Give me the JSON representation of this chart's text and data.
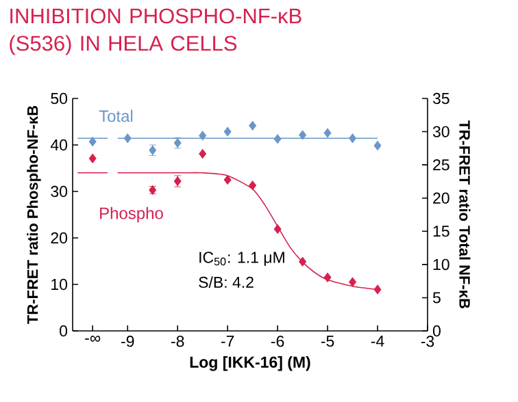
{
  "chart_data": {
    "type": "scatter",
    "title": "INHIBITION PHOSPHO-NF-κB (S536) IN HELA CELLS",
    "xlabel": "Log [IKK-16] (M)",
    "ylabel": "TR-FRET ratio Phospho-NF-κB",
    "y2label": "TR-FRET ratio Total NF-κB",
    "annotations": [
      "IC$_{50}$: 1.1 μM",
      "S/B: 4.2"
    ],
    "xlim": [
      -10.1,
      -3
    ],
    "xticks": [
      {
        "value": -9.7,
        "label": "-∞"
      },
      -9,
      -8,
      -7,
      -6,
      -5,
      -4,
      -3
    ],
    "ylim": [
      0,
      50
    ],
    "yticks": [
      0,
      10,
      20,
      30,
      40,
      50
    ],
    "y2lim": [
      0,
      35
    ],
    "y2ticks": [
      0,
      5,
      10,
      15,
      20,
      25,
      30,
      35
    ],
    "grid": false,
    "marker": "diamond",
    "series": [
      {
        "name": "Phospho",
        "color": "#d6204e",
        "x": [
          -9.7,
          -8.5,
          -8,
          -7.5,
          -7,
          -6.5,
          -6,
          -5.5,
          -5,
          -4.5,
          -4
        ],
        "values": [
          37.1,
          30.3,
          32.2,
          38.1,
          32.5,
          31.3,
          21.9,
          14.9,
          11.5,
          10.5,
          8.9
        ],
        "errors": [
          null,
          0.8,
          1.2,
          null,
          null,
          null,
          null,
          null,
          null,
          null,
          null
        ]
      },
      {
        "type": "line",
        "marker": "none",
        "color": "#d6204e",
        "x": [
          -10,
          -9.4,
          -9.3,
          -9.2,
          -8,
          -7.5,
          -7,
          -6.5,
          -6.25,
          -6,
          -5.75,
          -5.5,
          -5.25,
          -5,
          -4.5,
          -4
        ],
        "values": [
          34,
          34,
          null,
          34,
          34,
          34,
          33.4,
          30.5,
          27,
          22.5,
          18,
          14.8,
          12.5,
          11,
          9.6,
          8.9
        ]
      },
      {
        "name": "Total",
        "color": "#6a96c8",
        "axis": "y2",
        "x": [
          -9.7,
          -9,
          -8.5,
          -8,
          -7.5,
          -7,
          -6.5,
          -6,
          -5.5,
          -5,
          -4.5,
          -4
        ],
        "values": [
          28.5,
          29.0,
          27.2,
          28.3,
          29.4,
          30.0,
          30.9,
          28.9,
          29.5,
          29.8,
          29.0,
          27.9
        ],
        "errors": [
          null,
          null,
          0.8,
          0.8,
          null,
          null,
          null,
          null,
          null,
          null,
          null,
          null
        ]
      },
      {
        "type": "line",
        "marker": "none",
        "color": "#6a96c8",
        "axis": "y2",
        "x": [
          -10,
          -9.4,
          -9.3,
          -9.2,
          -4
        ],
        "values": [
          29,
          29,
          null,
          29,
          29
        ]
      }
    ]
  }
}
